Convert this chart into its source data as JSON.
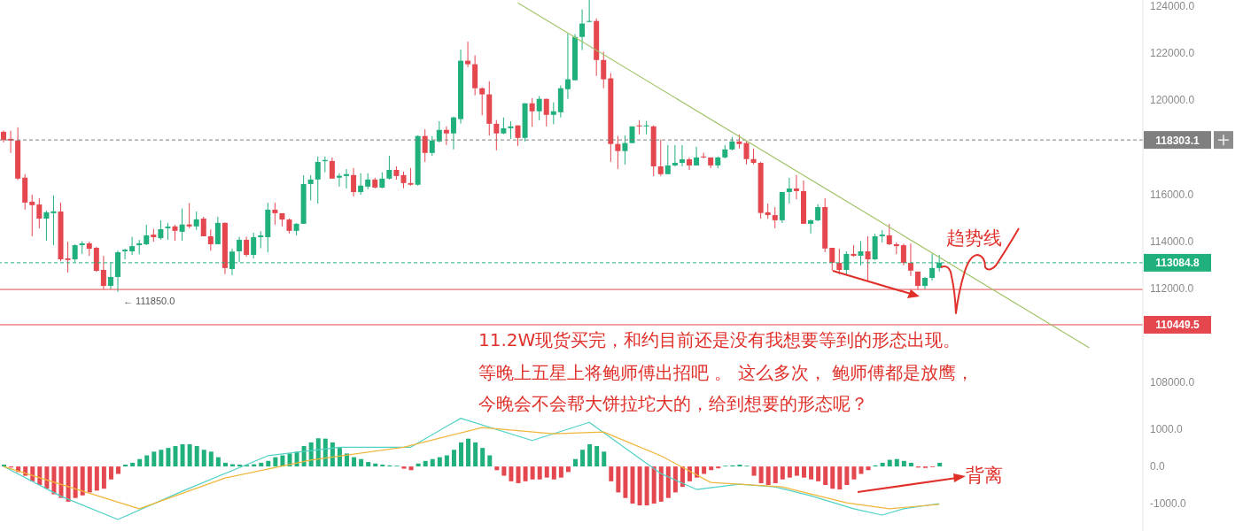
{
  "chart_data": [
    {
      "type": "candlestick",
      "categories": [
        null,
        null,
        null,
        null,
        null,
        null,
        null,
        null,
        null,
        null,
        null,
        null,
        null,
        null,
        null,
        null,
        null,
        null,
        null,
        null,
        null,
        null,
        null,
        null,
        null,
        null,
        null,
        null,
        null,
        null,
        null,
        null,
        null,
        null,
        null,
        null,
        null,
        null,
        null,
        null,
        null,
        null,
        null,
        null,
        null,
        null,
        null,
        null,
        null,
        null,
        null,
        null,
        null,
        null,
        null,
        null,
        null,
        null,
        null,
        null,
        null,
        null,
        null,
        null,
        null,
        null,
        null,
        null,
        null,
        null,
        null,
        null,
        null,
        null,
        null,
        null,
        null,
        null,
        null,
        null,
        null,
        null,
        null,
        null,
        null,
        null,
        null,
        null,
        null,
        null,
        null,
        null,
        null,
        null,
        null,
        null,
        null,
        null,
        null,
        null,
        null,
        null,
        null,
        null,
        null,
        null,
        null,
        null,
        null,
        null,
        null,
        null,
        null,
        null,
        null,
        null,
        null,
        null,
        null,
        null,
        null,
        null,
        null,
        null,
        null,
        null,
        null,
        null,
        null,
        null,
        null,
        null,
        null,
        null,
        null,
        null,
        null,
        null,
        null,
        null,
        null,
        null,
        null,
        null,
        null,
        null,
        null,
        null,
        null,
        null,
        null,
        null,
        null,
        null,
        null,
        null,
        null,
        null,
        null,
        null
      ],
      "colors": [
        "#e5474f",
        "#e5474f",
        "#e5474f",
        "#e5474f",
        "#e5474f",
        "#e5474f",
        "#20b07c",
        "#20b07c",
        "#e5474f",
        "#e5474f",
        "#20b07c",
        "#20b07c",
        "#e5474f",
        "#e5474f",
        "#e5474f",
        "#20b07c",
        "#20b07c",
        "#20b07c",
        "#20b07c",
        "#20b07c",
        "#20b07c",
        "#e5474f",
        "#20b07c",
        "#20b07c",
        "#e5474f",
        "#20b07c",
        "#e5474f",
        "#20b07c",
        "#e5474f",
        "#e5474f",
        "#20b07c",
        "#e5474f",
        "#20b07c",
        "#20b07c",
        "#e5474f",
        "#20b07c",
        "#20b07c",
        "#20b07c",
        "#e5474f",
        "#e5474f",
        "#e5474f",
        "#20b07c",
        "#20b07c",
        "#20b07c",
        "#20b07c",
        "#20b07c",
        "#e5474f",
        "#20b07c",
        "#20b07c",
        "#e5474f",
        "#20b07c",
        "#20b07c",
        "#e5474f",
        "#20b07c",
        "#20b07c",
        "#e5474f",
        "#e5474f",
        "#e5474f",
        "#20b07c",
        "#e5474f",
        "#20b07c",
        "#20b07c",
        "#e5474f",
        "#20b07c",
        "#20b07c",
        "#e5474f",
        "#e5474f",
        "#e5474f",
        "#e5474f",
        "#e5474f",
        "#20b07c",
        "#20b07c",
        "#e5474f",
        "#20b07c",
        "#e5474f",
        "#20b07c",
        "#e5474f",
        "#20b07c",
        "#20b07c",
        "#20b07c",
        "#20b07c",
        "#20b07c",
        "#20b07c",
        "#e5474f",
        "#e5474f",
        "#e5474f",
        "#e5474f",
        "#20b07c",
        "#20b07c",
        "#e5474f",
        "#20b07c",
        "#e5474f",
        "#e5474f",
        "#20b07c",
        "#20b07c",
        "#20b07c",
        "#e5474f",
        "#20b07c",
        "#e5474f",
        "#e5474f",
        "#20b07c",
        "#20b07c",
        "#20b07c",
        "#e5474f",
        "#e5474f",
        "#e5474f",
        "#e5474f",
        "#e5474f",
        "#e5474f",
        "#20b07c",
        "#20b07c",
        "#e5474f",
        "#e5474f",
        "#20b07c",
        "#20b07c",
        "#e5474f",
        "#e5474f",
        "#e5474f",
        "#20b07c",
        "#e5474f",
        "#20b07c",
        "#e5474f",
        "#20b07c",
        "#20b07c",
        "#e5474f",
        "#e5474f",
        "#e5474f",
        "#e5474f",
        "#e5474f",
        "#20b07c",
        "#20b07c",
        "#20b07c",
        null,
        null,
        null,
        null,
        null,
        null,
        null,
        null,
        null,
        null,
        null,
        null,
        null,
        null,
        null,
        null,
        null,
        null,
        null,
        null,
        null,
        null,
        null,
        null,
        null,
        null,
        null,
        null
      ],
      "ohlc": [
        [
          118650,
          118700,
          118200,
          118300
        ],
        [
          118350,
          118700,
          117750,
          118280
        ],
        [
          118280,
          118840,
          116600,
          116660
        ],
        [
          116700,
          116850,
          115340,
          115640
        ],
        [
          115680,
          115980,
          114210,
          115530
        ],
        [
          115560,
          115830,
          114550,
          114960
        ],
        [
          114960,
          115300,
          114020,
          115230
        ],
        [
          115190,
          115950,
          113830,
          115270
        ],
        [
          115260,
          115640,
          113150,
          113230
        ],
        [
          113270,
          113980,
          112670,
          113200
        ],
        [
          113230,
          113870,
          113120,
          113830
        ],
        [
          113830,
          114000,
          113460,
          113910
        ],
        [
          113910,
          113980,
          113380,
          113680
        ],
        [
          113720,
          113760,
          112700,
          112740
        ],
        [
          112780,
          113380,
          111960,
          112100
        ],
        [
          112100,
          113100,
          111950,
          112480
        ],
        [
          112480,
          113600,
          111850,
          113530
        ],
        [
          113570,
          113680,
          113230,
          113640
        ],
        [
          113570,
          114190,
          113420,
          113790
        ],
        [
          113830,
          114060,
          113450,
          113910
        ],
        [
          113870,
          114700,
          113830,
          114250
        ],
        [
          114280,
          114520,
          113980,
          114170
        ],
        [
          114130,
          114890,
          114060,
          114510
        ],
        [
          114550,
          114780,
          114060,
          114620
        ],
        [
          114630,
          114700,
          114020,
          114440
        ],
        [
          114400,
          115390,
          114020,
          114710
        ],
        [
          114710,
          115620,
          114550,
          114630
        ],
        [
          114630,
          115260,
          114480,
          114930
        ],
        [
          114960,
          115040,
          114210,
          114210
        ],
        [
          114210,
          114500,
          113600,
          113870
        ],
        [
          113870,
          115040,
          113870,
          114780
        ],
        [
          114780,
          114800,
          112600,
          112860
        ],
        [
          112820,
          113680,
          112560,
          113560
        ],
        [
          113570,
          114190,
          113110,
          114060
        ],
        [
          114060,
          114190,
          113340,
          113420
        ],
        [
          113420,
          114360,
          113270,
          114170
        ],
        [
          114170,
          114430,
          113700,
          114250
        ],
        [
          114170,
          115640,
          113530,
          115340
        ],
        [
          115340,
          115640,
          114700,
          115190
        ],
        [
          115190,
          115190,
          114630,
          114920
        ],
        [
          114920,
          114960,
          114330,
          114440
        ],
        [
          114440,
          114770,
          114250,
          114740
        ],
        [
          114740,
          116800,
          114740,
          116430
        ],
        [
          116430,
          116810,
          115730,
          116620
        ],
        [
          116620,
          117600,
          115600,
          117370
        ],
        [
          117400,
          117600,
          116930,
          117450
        ],
        [
          117410,
          117560,
          116660,
          116660
        ],
        [
          116700,
          116890,
          116320,
          116780
        ],
        [
          116770,
          117070,
          116240,
          116850
        ],
        [
          116810,
          117110,
          115900,
          116090
        ],
        [
          116090,
          116890,
          115980,
          116360
        ],
        [
          116320,
          116890,
          116210,
          116620
        ],
        [
          116620,
          116700,
          116250,
          116280
        ],
        [
          116280,
          116930,
          116250,
          116660
        ],
        [
          116660,
          117630,
          116620,
          117030
        ],
        [
          117030,
          117180,
          116620,
          116770
        ],
        [
          116810,
          116960,
          116250,
          116470
        ],
        [
          116470,
          117110,
          116360,
          116400
        ],
        [
          116400,
          118500,
          116360,
          118470
        ],
        [
          118470,
          118760,
          117370,
          117750
        ],
        [
          117750,
          118470,
          117630,
          118280
        ],
        [
          118240,
          119100,
          118200,
          118730
        ],
        [
          118730,
          118880,
          118090,
          118580
        ],
        [
          118580,
          119300,
          117900,
          119260
        ],
        [
          119190,
          122140,
          119000,
          121670
        ],
        [
          121670,
          122480,
          121400,
          121520
        ],
        [
          121520,
          121900,
          120200,
          120500
        ],
        [
          120500,
          120540,
          119350,
          120240
        ],
        [
          120240,
          120800,
          118480,
          118990
        ],
        [
          118990,
          119150,
          117860,
          118580
        ],
        [
          118580,
          119260,
          118550,
          118800
        ],
        [
          118800,
          119100,
          118350,
          118880
        ],
        [
          118920,
          118920,
          118050,
          118390
        ],
        [
          118390,
          119860,
          118240,
          119860
        ],
        [
          119860,
          120080,
          118860,
          119520
        ],
        [
          119520,
          120170,
          119140,
          120050
        ],
        [
          120050,
          120050,
          118880,
          119370
        ],
        [
          119370,
          119900,
          118970,
          119520
        ],
        [
          119480,
          120620,
          119260,
          120500
        ],
        [
          120460,
          122820,
          120050,
          120880
        ],
        [
          120840,
          122800,
          120840,
          122680
        ],
        [
          122680,
          123850,
          122120,
          123250
        ],
        [
          123320,
          124250,
          123300,
          123360
        ],
        [
          123360,
          123470,
          121020,
          121700
        ],
        [
          121700,
          122050,
          120500,
          120880
        ],
        [
          120920,
          121140,
          117370,
          118130
        ],
        [
          118130,
          118470,
          117070,
          117830
        ],
        [
          117830,
          118500,
          117260,
          118170
        ],
        [
          118170,
          118880,
          118170,
          118880
        ],
        [
          118920,
          119150,
          118540,
          118880
        ],
        [
          118880,
          119110,
          118540,
          118920
        ],
        [
          118880,
          118920,
          116770,
          117180
        ],
        [
          117180,
          118320,
          116770,
          116850
        ],
        [
          116850,
          118090,
          116850,
          117220
        ],
        [
          117220,
          118090,
          117180,
          117330
        ],
        [
          117330,
          118090,
          117180,
          117480
        ],
        [
          117480,
          117560,
          117030,
          117220
        ],
        [
          117220,
          118010,
          117220,
          117560
        ],
        [
          117600,
          117760,
          117520,
          117560
        ],
        [
          117560,
          117560,
          117100,
          117220
        ],
        [
          117220,
          117600,
          117100,
          117560
        ],
        [
          117560,
          118090,
          117520,
          117900
        ],
        [
          117900,
          118430,
          117860,
          118240
        ],
        [
          118240,
          118540,
          117940,
          118130
        ],
        [
          118170,
          118280,
          117260,
          117490
        ],
        [
          117490,
          117940,
          117260,
          117330
        ],
        [
          117330,
          117370,
          114960,
          115200
        ],
        [
          115230,
          115600,
          114950,
          115110
        ],
        [
          115110,
          115450,
          114550,
          114890
        ],
        [
          114890,
          116090,
          114780,
          116090
        ],
        [
          116090,
          116690,
          115600,
          116240
        ],
        [
          116240,
          116810,
          115780,
          116130
        ],
        [
          116130,
          116580,
          114740,
          114740
        ],
        [
          114740,
          114920,
          114330,
          114890
        ],
        [
          114890,
          115570,
          114850,
          115450
        ],
        [
          115450,
          115830,
          113530,
          113690
        ],
        [
          113720,
          113720,
          112750,
          113080
        ],
        [
          113080,
          113680,
          112600,
          112780
        ],
        [
          112780,
          113570,
          112560,
          113460
        ],
        [
          113460,
          113830,
          113340,
          113380
        ],
        [
          113380,
          114000,
          112970,
          113570
        ],
        [
          113570,
          114210,
          112330,
          113230
        ],
        [
          113230,
          114320,
          113200,
          114210
        ],
        [
          114210,
          114470,
          113950,
          114280
        ],
        [
          114250,
          114730,
          113830,
          113870
        ],
        [
          113870,
          113950,
          113450,
          113790
        ],
        [
          113830,
          113900,
          112970,
          113080
        ],
        [
          113080,
          113900,
          112520,
          112750
        ],
        [
          112710,
          112710,
          111950,
          112100
        ],
        [
          112100,
          112480,
          111960,
          112440
        ],
        [
          112440,
          113460,
          112330,
          112860
        ],
        [
          112860,
          113420,
          112710,
          113084.8
        ],
        null,
        null,
        null,
        null,
        null,
        null,
        null,
        null,
        null,
        null,
        null,
        null,
        null,
        null,
        null,
        null,
        null,
        null,
        null,
        null,
        null,
        null,
        null,
        null,
        null,
        null,
        null,
        null
      ],
      "series": [
        {
          "type": "line",
          "color": "#a3c46a",
          "values": [
            null,
            null,
            null,
            null,
            null,
            null,
            null,
            null,
            null,
            null,
            null,
            null,
            null,
            null,
            null,
            null,
            null,
            null,
            null,
            null,
            null,
            null,
            null,
            null,
            null,
            null,
            null,
            null,
            null,
            null,
            null,
            null,
            null,
            null,
            null,
            null,
            null,
            null,
            null,
            null,
            null,
            null,
            null,
            null,
            null,
            null,
            null,
            null,
            null,
            null,
            null,
            null,
            null,
            null,
            null,
            null,
            null,
            null,
            null,
            null,
            null,
            null,
            null,
            null,
            null,
            null,
            null,
            null,
            null,
            null,
            null,
            null,
            124130,
            null,
            null,
            null,
            null,
            null,
            null,
            null,
            null,
            null,
            null,
            null,
            null,
            null,
            null,
            null,
            null,
            null,
            null,
            null,
            null,
            null,
            null,
            null,
            null,
            null,
            null,
            null,
            null,
            null,
            null,
            null,
            null,
            null,
            null,
            null,
            null,
            null,
            null,
            null,
            null,
            null,
            null,
            null,
            null,
            null,
            null,
            null,
            null,
            null,
            null,
            null,
            null,
            null,
            null,
            null,
            null,
            null,
            null,
            null,
            null,
            null,
            null,
            null,
            null,
            null,
            null,
            null,
            null,
            null,
            null,
            null,
            null,
            null,
            null,
            null,
            null,
            null,
            null,
            null,
            109470,
            null,
            null,
            null,
            null,
            null,
            null,
            null
          ]
        }
      ],
      "ylim": [
        106650,
        124250
      ],
      "yticks": [
        {
          "value": 108000,
          "label": "108000.0"
        },
        {
          "value": 112000,
          "label": "112000.0"
        },
        {
          "value": 114000,
          "label": "114000.0"
        },
        {
          "value": 116000,
          "label": "116000.0"
        },
        {
          "value": 120000,
          "label": "120000.0"
        },
        {
          "value": 122000,
          "label": "122000.0"
        },
        {
          "value": 124000,
          "label": "124000.0"
        }
      ],
      "tick_labels": "y",
      "ref_lines": [
        {
          "axis": "y",
          "value": 118303.1,
          "label": "118303.1",
          "color": "#7f7f7f",
          "line_style": "dashed"
        },
        {
          "axis": "y",
          "value": 113084.8,
          "label": "113084.8",
          "color": "#20b07c",
          "line_style": "dashed"
        },
        {
          "axis": "y",
          "value": 111950,
          "color": "#e5474f"
        },
        {
          "axis": "y",
          "value": 110449.5,
          "label": "110449.5",
          "color": "#e5474f"
        }
      ],
      "annotations": [
        {
          "text": "← 111850.0",
          "y": 111850
        },
        "趋势线",
        "11.2W现货买完，和约目前还是没有我想要等到的形态出现。",
        "等晚上五星上将鲍师傅出招吧 。 这么多次， 鲍师傅都是放鹰，",
        "今晚会不会帮大饼拉坨大的，给到想要的形态呢？"
      ]
    },
    {
      "type": "bar",
      "categories": [
        null,
        null,
        null,
        null,
        null,
        null,
        null,
        null,
        null,
        null,
        null,
        null,
        null,
        null,
        null,
        null,
        null,
        null,
        null,
        null,
        null,
        null,
        null,
        null,
        null,
        null,
        null,
        null,
        null,
        null,
        null,
        null,
        null,
        null,
        null,
        null,
        null,
        null,
        null,
        null,
        null,
        null,
        null,
        null,
        null,
        null,
        null,
        null,
        null,
        null,
        null,
        null,
        null,
        null,
        null,
        null,
        null,
        null,
        null,
        null,
        null,
        null,
        null,
        null,
        null,
        null,
        null,
        null,
        null,
        null,
        null,
        null,
        null,
        null,
        null,
        null,
        null,
        null,
        null,
        null,
        null,
        null,
        null,
        null,
        null,
        null,
        null,
        null,
        null,
        null,
        null,
        null,
        null,
        null,
        null,
        null,
        null,
        null,
        null,
        null,
        null,
        null,
        null,
        null,
        null,
        null,
        null,
        null,
        null,
        null,
        null,
        null,
        null,
        null,
        null,
        null,
        null,
        null,
        null,
        null,
        null,
        null,
        null,
        null,
        null,
        null,
        null,
        null,
        null,
        null,
        null,
        null,
        null,
        null,
        null,
        null,
        null,
        null,
        null,
        null,
        null,
        null,
        null,
        null,
        null,
        null,
        null,
        null,
        null,
        null,
        null,
        null,
        null,
        null,
        null,
        null,
        null,
        null,
        null,
        null
      ],
      "series": [
        {
          "type": "bar",
          "values": [
            50,
            -30,
            -150,
            -250,
            -400,
            -500,
            -600,
            -750,
            -850,
            -950,
            -850,
            -780,
            -700,
            -650,
            -600,
            -350,
            -200,
            50,
            100,
            200,
            300,
            400,
            450,
            500,
            550,
            600,
            600,
            550,
            450,
            400,
            250,
            100,
            60,
            50,
            40,
            60,
            100,
            150,
            250,
            300,
            350,
            400,
            550,
            650,
            760,
            750,
            650,
            500,
            350,
            250,
            200,
            120,
            80,
            50,
            30,
            20,
            -60,
            -100,
            80,
            150,
            200,
            250,
            300,
            450,
            650,
            750,
            650,
            500,
            300,
            -100,
            -250,
            -400,
            -450,
            -400,
            -350,
            -350,
            -300,
            -350,
            -300,
            -150,
            200,
            450,
            600,
            550,
            400,
            -400,
            -700,
            -850,
            -1000,
            -1050,
            -1050,
            -1000,
            -950,
            -850,
            -700,
            -550,
            -400,
            -300,
            -200,
            -100,
            -50,
            20,
            30,
            50,
            20,
            -250,
            -450,
            -500,
            -450,
            -350,
            -300,
            -250,
            -300,
            -350,
            -400,
            -500,
            -600,
            -620,
            -500,
            -350,
            -200,
            -100,
            30,
            100,
            180,
            200,
            150,
            100,
            -30,
            -40,
            -20,
            100,
            null,
            null,
            null,
            null,
            null,
            null,
            null,
            null,
            null,
            null,
            null,
            null,
            null,
            null,
            null,
            null,
            null,
            null,
            null,
            null,
            null,
            null,
            null,
            null,
            null,
            null,
            null,
            null
          ],
          "colors": [
            "#20b07c",
            "#e5474f",
            "#e5474f",
            "#e5474f",
            "#e5474f",
            "#e5474f",
            "#e5474f",
            "#e5474f",
            "#e5474f",
            "#e5474f",
            "#e5474f",
            "#e5474f",
            "#e5474f",
            "#e5474f",
            "#e5474f",
            "#e5474f",
            "#e5474f",
            "#20b07c",
            "#20b07c",
            "#20b07c",
            "#20b07c",
            "#20b07c",
            "#20b07c",
            "#20b07c",
            "#20b07c",
            "#20b07c",
            "#20b07c",
            "#20b07c",
            "#20b07c",
            "#20b07c",
            "#20b07c",
            "#20b07c",
            "#20b07c",
            "#20b07c",
            "#20b07c",
            "#20b07c",
            "#20b07c",
            "#20b07c",
            "#20b07c",
            "#20b07c",
            "#20b07c",
            "#20b07c",
            "#20b07c",
            "#20b07c",
            "#20b07c",
            "#20b07c",
            "#20b07c",
            "#20b07c",
            "#20b07c",
            "#20b07c",
            "#20b07c",
            "#20b07c",
            "#20b07c",
            "#20b07c",
            "#20b07c",
            "#20b07c",
            "#e5474f",
            "#e5474f",
            "#20b07c",
            "#20b07c",
            "#20b07c",
            "#20b07c",
            "#20b07c",
            "#20b07c",
            "#20b07c",
            "#20b07c",
            "#20b07c",
            "#20b07c",
            "#20b07c",
            "#e5474f",
            "#e5474f",
            "#e5474f",
            "#e5474f",
            "#e5474f",
            "#e5474f",
            "#e5474f",
            "#e5474f",
            "#e5474f",
            "#e5474f",
            "#e5474f",
            "#20b07c",
            "#20b07c",
            "#20b07c",
            "#20b07c",
            "#20b07c",
            "#e5474f",
            "#e5474f",
            "#e5474f",
            "#e5474f",
            "#e5474f",
            "#e5474f",
            "#e5474f",
            "#e5474f",
            "#e5474f",
            "#e5474f",
            "#e5474f",
            "#e5474f",
            "#e5474f",
            "#e5474f",
            "#e5474f",
            "#e5474f",
            "#20b07c",
            "#20b07c",
            "#20b07c",
            "#20b07c",
            "#e5474f",
            "#e5474f",
            "#e5474f",
            "#e5474f",
            "#e5474f",
            "#e5474f",
            "#e5474f",
            "#e5474f",
            "#e5474f",
            "#e5474f",
            "#e5474f",
            "#e5474f",
            "#e5474f",
            "#e5474f",
            "#e5474f",
            "#e5474f",
            "#e5474f",
            "#20b07c",
            "#20b07c",
            "#20b07c",
            "#20b07c",
            "#20b07c",
            "#20b07c",
            "#e5474f",
            "#e5474f",
            "#e5474f",
            "#20b07c",
            null,
            null,
            null,
            null,
            null,
            null,
            null,
            null,
            null,
            null,
            null,
            null,
            null,
            null,
            null,
            null,
            null,
            null,
            null,
            null,
            null,
            null,
            null,
            null,
            null,
            null,
            null,
            null
          ]
        },
        {
          "type": "line",
          "color": "#4fd1c5",
          "values": [
            0,
            null,
            null,
            null,
            null,
            null,
            null,
            null,
            -800,
            null,
            null,
            null,
            null,
            null,
            null,
            null,
            -1430,
            null,
            null,
            null,
            null,
            null,
            null,
            null,
            null,
            -670,
            null,
            null,
            null,
            null,
            null,
            null,
            null,
            null,
            null,
            null,
            null,
            290,
            null,
            null,
            null,
            null,
            null,
            null,
            null,
            null,
            null,
            520,
            null,
            null,
            null,
            null,
            null,
            null,
            null,
            null,
            null,
            520,
            null,
            null,
            null,
            null,
            null,
            null,
            1300,
            null,
            null,
            null,
            null,
            null,
            null,
            null,
            null,
            null,
            700,
            null,
            null,
            null,
            null,
            null,
            null,
            null,
            1190,
            null,
            null,
            null,
            null,
            null,
            null,
            null,
            null,
            null,
            -190,
            null,
            null,
            null,
            null,
            -620,
            null,
            null,
            null,
            null,
            null,
            -480,
            null,
            null,
            null,
            null,
            -550,
            null,
            null,
            null,
            null,
            -790,
            null,
            null,
            null,
            null,
            null,
            -1140,
            null,
            null,
            null,
            -1310,
            null,
            null,
            -1140,
            null,
            null,
            null,
            null,
            -1000,
            null,
            null,
            null,
            null,
            null,
            null,
            null,
            null,
            null,
            null,
            null,
            null,
            null,
            null,
            null,
            null,
            null,
            null,
            null,
            null,
            null,
            null,
            null,
            null,
            null,
            null,
            null,
            null
          ]
        },
        {
          "type": "line",
          "color": "#f0b63a",
          "values": [
            0,
            null,
            null,
            null,
            null,
            null,
            null,
            null,
            null,
            null,
            null,
            null,
            null,
            null,
            null,
            null,
            null,
            null,
            null,
            -1140,
            null,
            null,
            null,
            null,
            null,
            null,
            null,
            null,
            null,
            null,
            null,
            -310,
            null,
            null,
            null,
            null,
            null,
            null,
            null,
            null,
            null,
            null,
            null,
            170,
            null,
            null,
            null,
            null,
            null,
            null,
            null,
            null,
            null,
            null,
            null,
            null,
            520,
            null,
            null,
            null,
            null,
            null,
            null,
            null,
            null,
            null,
            null,
            1050,
            null,
            null,
            null,
            null,
            null,
            null,
            null,
            null,
            null,
            880,
            null,
            null,
            null,
            null,
            null,
            null,
            930,
            null,
            null,
            null,
            null,
            null,
            null,
            null,
            290,
            null,
            null,
            null,
            null,
            null,
            null,
            -430,
            null,
            null,
            null,
            null,
            null,
            null,
            null,
            null,
            null,
            -550,
            null,
            null,
            null,
            null,
            null,
            null,
            null,
            null,
            -980,
            null,
            null,
            null,
            null,
            null,
            -1140,
            null,
            null,
            null,
            null,
            null,
            null,
            -1020,
            null,
            null,
            null,
            null,
            null,
            null,
            null,
            null,
            null,
            null,
            null,
            null,
            null,
            null,
            null,
            null,
            null,
            null,
            null,
            null,
            null,
            null,
            null,
            null,
            null,
            null,
            null,
            null
          ]
        }
      ],
      "ylim": [
        -1740,
        1410
      ],
      "yticks": [
        {
          "value": 1000,
          "label": "1000.0"
        },
        {
          "value": 0,
          "label": "0.0"
        },
        {
          "value": -1000,
          "label": "-1000.0"
        }
      ],
      "tick_labels": "y",
      "annotations": [
        "背离"
      ]
    }
  ]
}
